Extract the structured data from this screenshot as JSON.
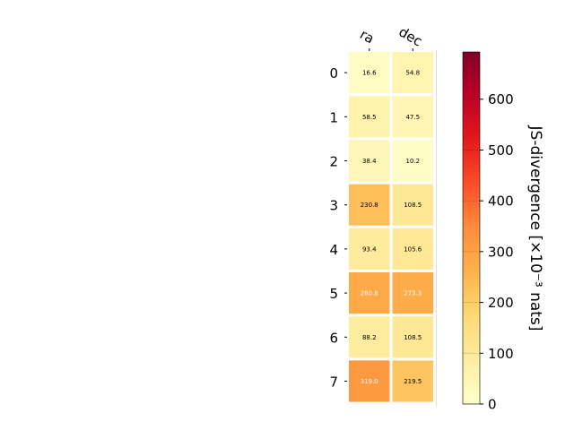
{
  "chart_data": {
    "type": "heatmap",
    "columns": [
      "ra",
      "dec"
    ],
    "rows": [
      "0",
      "1",
      "2",
      "3",
      "4",
      "5",
      "6",
      "7"
    ],
    "values": [
      [
        16.6,
        54.8
      ],
      [
        58.5,
        47.5
      ],
      [
        38.4,
        10.2
      ],
      [
        230.8,
        108.5
      ],
      [
        93.4,
        105.6
      ],
      [
        280.8,
        273.3
      ],
      [
        88.2,
        108.5
      ],
      [
        319.0,
        219.5
      ]
    ],
    "cell_labels": [
      [
        "16.6",
        "54.8"
      ],
      [
        "58.5",
        "47.5"
      ],
      [
        "38.4",
        "10.2"
      ],
      [
        "230.8",
        "108.5"
      ],
      [
        "93.4",
        "105.6"
      ],
      [
        "280.8",
        "273.3"
      ],
      [
        "88.2",
        "108.5"
      ],
      [
        "319.0",
        "219.5"
      ]
    ],
    "colorbar": {
      "label": "JS-divergence [×10⁻³ nats]",
      "range": [
        0,
        693
      ],
      "ticks": [
        0,
        100,
        200,
        300,
        400,
        500,
        600
      ],
      "tick_labels": [
        "0",
        "100",
        "200",
        "300",
        "400",
        "500",
        "600"
      ],
      "colormap": "YlOrRd"
    },
    "colormap_stops": [
      "#ffffcc",
      "#ffeda0",
      "#fed976",
      "#feb24c",
      "#fd8d3c",
      "#fc4e2a",
      "#e31a1c",
      "#bd0026",
      "#800026"
    ]
  }
}
